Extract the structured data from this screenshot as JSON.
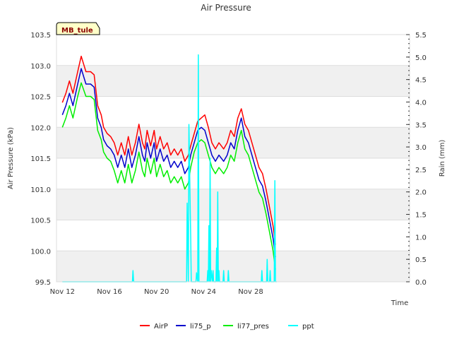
{
  "chart_data": {
    "type": "line",
    "title": "Air Pressure",
    "station_label": "MB_tule",
    "xlabel": "Time",
    "ylabel_left": "Air Pressure (kPa)",
    "ylabel_right": "Rain (mm)",
    "x_unit": "days since Nov 12",
    "xlim": [
      -0.5,
      29.5
    ],
    "ylim_left": [
      99.5,
      103.5
    ],
    "ylim_right": [
      0.0,
      5.5
    ],
    "x_ticks": [
      {
        "x": 0,
        "label": "Nov 12"
      },
      {
        "x": 4,
        "label": "Nov 16"
      },
      {
        "x": 8,
        "label": "Nov 20"
      },
      {
        "x": 12,
        "label": "Nov 24"
      },
      {
        "x": 16,
        "label": "Nov 28"
      }
    ],
    "y_ticks_left": [
      {
        "v": 99.5,
        "label": "99.5"
      },
      {
        "v": 100.0,
        "label": "100.0"
      },
      {
        "v": 100.5,
        "label": "100.5"
      },
      {
        "v": 101.0,
        "label": "101.0"
      },
      {
        "v": 101.5,
        "label": "101.5"
      },
      {
        "v": 102.0,
        "label": "102.0"
      },
      {
        "v": 102.5,
        "label": "102.5"
      },
      {
        "v": 103.0,
        "label": "103.0"
      },
      {
        "v": 103.5,
        "label": "103.5"
      }
    ],
    "y_ticks_right": [
      {
        "v": 0.0,
        "label": "0.0"
      },
      {
        "v": 0.5,
        "label": "0.5"
      },
      {
        "v": 1.0,
        "label": "1.0"
      },
      {
        "v": 1.5,
        "label": "1.5"
      },
      {
        "v": 2.0,
        "label": "2.0"
      },
      {
        "v": 2.5,
        "label": "2.5"
      },
      {
        "v": 3.0,
        "label": "3.0"
      },
      {
        "v": 3.5,
        "label": "3.5"
      },
      {
        "v": 4.0,
        "label": "4.0"
      },
      {
        "v": 4.5,
        "label": "4.5"
      },
      {
        "v": 5.0,
        "label": "5.0"
      },
      {
        "v": 5.5,
        "label": "5.5"
      }
    ],
    "bands_left": [
      [
        99.5,
        100.0
      ],
      [
        100.5,
        101.0
      ],
      [
        101.5,
        102.0
      ],
      [
        102.5,
        103.0
      ]
    ],
    "series": [
      {
        "name": "AirP",
        "color": "#ff0000",
        "axis": "left",
        "x": [
          0.0,
          0.3,
          0.6,
          0.9,
          1.3,
          1.6,
          2.0,
          2.4,
          2.7,
          3.0,
          3.3,
          3.5,
          3.8,
          4.1,
          4.4,
          4.7,
          5.0,
          5.3,
          5.6,
          5.9,
          6.2,
          6.5,
          6.8,
          7.0,
          7.2,
          7.5,
          7.8,
          8.0,
          8.3,
          8.6,
          8.9,
          9.2,
          9.5,
          9.8,
          10.1,
          10.4,
          10.7,
          10.9,
          11.2,
          11.5,
          11.8,
          12.1,
          12.4,
          12.7,
          13.0,
          13.3,
          13.7,
          14.0,
          14.3,
          14.6,
          14.9,
          15.2,
          15.5,
          15.8,
          16.1,
          16.4,
          16.7,
          17.0,
          17.3,
          17.6,
          17.9,
          18.1
        ],
        "y": [
          102.4,
          102.55,
          102.75,
          102.55,
          102.9,
          103.15,
          102.9,
          102.9,
          102.85,
          102.35,
          102.2,
          102.0,
          101.9,
          101.85,
          101.75,
          101.55,
          101.75,
          101.55,
          101.85,
          101.55,
          101.75,
          102.05,
          101.75,
          101.65,
          101.95,
          101.7,
          101.95,
          101.65,
          101.85,
          101.65,
          101.75,
          101.55,
          101.65,
          101.55,
          101.65,
          101.45,
          101.55,
          101.7,
          101.9,
          102.1,
          102.15,
          102.2,
          102.0,
          101.75,
          101.65,
          101.75,
          101.65,
          101.75,
          101.95,
          101.85,
          102.15,
          102.3,
          102.05,
          101.95,
          101.75,
          101.55,
          101.35,
          101.25,
          101.0,
          100.7,
          100.4,
          100.1
        ]
      },
      {
        "name": "li75_p",
        "color": "#0000cc",
        "axis": "left",
        "x": [
          0.0,
          0.3,
          0.6,
          0.9,
          1.3,
          1.6,
          2.0,
          2.4,
          2.7,
          3.0,
          3.3,
          3.5,
          3.8,
          4.1,
          4.4,
          4.7,
          5.0,
          5.3,
          5.6,
          5.9,
          6.2,
          6.5,
          6.8,
          7.0,
          7.2,
          7.5,
          7.8,
          8.0,
          8.3,
          8.6,
          8.9,
          9.2,
          9.5,
          9.8,
          10.1,
          10.4,
          10.7,
          10.9,
          11.2,
          11.5,
          11.8,
          12.1,
          12.4,
          12.7,
          13.0,
          13.3,
          13.7,
          14.0,
          14.3,
          14.6,
          14.9,
          15.2,
          15.5,
          15.8,
          16.1,
          16.4,
          16.7,
          17.0,
          17.3,
          17.6,
          17.9,
          18.1
        ],
        "y": [
          102.2,
          102.35,
          102.55,
          102.35,
          102.7,
          102.95,
          102.7,
          102.7,
          102.65,
          102.15,
          102.0,
          101.8,
          101.7,
          101.65,
          101.55,
          101.35,
          101.55,
          101.35,
          101.65,
          101.35,
          101.55,
          101.85,
          101.55,
          101.45,
          101.75,
          101.5,
          101.75,
          101.45,
          101.65,
          101.45,
          101.55,
          101.35,
          101.45,
          101.35,
          101.45,
          101.25,
          101.35,
          101.55,
          101.75,
          101.95,
          102.0,
          101.95,
          101.75,
          101.55,
          101.45,
          101.55,
          101.45,
          101.55,
          101.75,
          101.65,
          101.95,
          102.15,
          101.85,
          101.75,
          101.55,
          101.35,
          101.15,
          101.05,
          100.8,
          100.5,
          100.2,
          99.9
        ]
      },
      {
        "name": "li77_pres",
        "color": "#00ee00",
        "axis": "left",
        "x": [
          0.0,
          0.3,
          0.6,
          0.9,
          1.3,
          1.6,
          2.0,
          2.4,
          2.7,
          3.0,
          3.3,
          3.5,
          3.8,
          4.1,
          4.4,
          4.7,
          5.0,
          5.3,
          5.6,
          5.9,
          6.2,
          6.5,
          6.8,
          7.0,
          7.2,
          7.5,
          7.8,
          8.0,
          8.3,
          8.6,
          8.9,
          9.2,
          9.5,
          9.8,
          10.1,
          10.4,
          10.7,
          10.9,
          11.2,
          11.5,
          11.8,
          12.1,
          12.4,
          12.7,
          13.0,
          13.3,
          13.7,
          14.0,
          14.3,
          14.6,
          14.9,
          15.2,
          15.5,
          15.8,
          16.1,
          16.4,
          16.7,
          17.0,
          17.3,
          17.6,
          17.9,
          18.1
        ],
        "y": [
          102.0,
          102.15,
          102.35,
          102.15,
          102.5,
          102.72,
          102.5,
          102.5,
          102.45,
          101.95,
          101.8,
          101.6,
          101.5,
          101.45,
          101.3,
          101.1,
          101.3,
          101.1,
          101.4,
          101.1,
          101.3,
          101.6,
          101.3,
          101.2,
          101.5,
          101.25,
          101.5,
          101.2,
          101.4,
          101.2,
          101.3,
          101.1,
          101.2,
          101.1,
          101.2,
          101.0,
          101.1,
          101.35,
          101.6,
          101.75,
          101.8,
          101.75,
          101.55,
          101.35,
          101.25,
          101.35,
          101.25,
          101.35,
          101.55,
          101.45,
          101.75,
          101.95,
          101.65,
          101.55,
          101.35,
          101.15,
          100.95,
          100.85,
          100.6,
          100.3,
          100.0,
          99.7
        ]
      },
      {
        "name": "ppt",
        "color": "#00ffff",
        "axis": "right",
        "x": [
          0.0,
          5.95,
          6.0,
          6.05,
          10.55,
          10.6,
          10.7,
          10.75,
          10.9,
          10.95,
          11.0,
          11.35,
          11.4,
          11.5,
          11.55,
          11.6,
          12.3,
          12.35,
          12.4,
          12.45,
          12.5,
          12.55,
          12.6,
          12.65,
          12.75,
          12.8,
          12.85,
          13.05,
          13.1,
          13.15,
          13.2,
          13.25,
          13.3,
          13.35,
          13.4,
          13.65,
          13.7,
          13.75,
          14.05,
          14.1,
          14.15,
          16.9,
          16.95,
          17.0,
          17.35,
          17.4,
          17.45,
          17.6,
          17.65,
          17.7,
          17.75,
          18.0,
          18.05,
          18.1,
          18.2
        ],
        "y": [
          0.0,
          0.0,
          0.25,
          0.0,
          0.0,
          1.75,
          0.0,
          3.5,
          1.0,
          0.0,
          0.0,
          0.0,
          0.2,
          0.0,
          5.05,
          0.0,
          0.0,
          0.25,
          0.0,
          1.25,
          0.0,
          2.75,
          0.0,
          0.25,
          0.0,
          0.25,
          0.0,
          0.0,
          0.75,
          0.0,
          2.0,
          0.0,
          0.25,
          0.0,
          0.0,
          0.0,
          0.25,
          0.0,
          0.0,
          0.25,
          0.0,
          0.0,
          0.25,
          0.0,
          0.0,
          0.5,
          0.0,
          0.0,
          0.25,
          0.0,
          0.0,
          0.0,
          2.25,
          0.0,
          0.0
        ]
      }
    ],
    "legend": [
      {
        "name": "AirP",
        "color": "#ff0000"
      },
      {
        "name": "li75_p",
        "color": "#0000cc"
      },
      {
        "name": "li77_pres",
        "color": "#00ee00"
      },
      {
        "name": "ppt",
        "color": "#00ffff"
      }
    ],
    "legend_position": "bottom-center"
  }
}
